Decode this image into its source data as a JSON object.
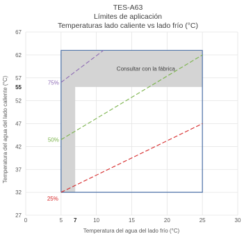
{
  "chart_data": {
    "type": "line",
    "title": "TES-A63",
    "subtitle_1": "Límites de aplicación",
    "subtitle_2": "Temperaturas lado caliente vs lado frío (°C)",
    "xlabel": "Temperatura del agua del lado frío (°C)",
    "ylabel": "Temperatura del agua del lado caliente (°C)",
    "xlim": [
      0,
      30
    ],
    "ylim": [
      27,
      67
    ],
    "x_ticks": [
      0,
      5,
      10,
      15,
      20,
      25,
      30
    ],
    "y_ticks": [
      27,
      32,
      37,
      42,
      47,
      52,
      57,
      62,
      67
    ],
    "x_extra_tick": {
      "value": 7,
      "label": "7"
    },
    "y_extra_tick": {
      "value": 55,
      "label": "55"
    },
    "grid": true,
    "annotation": "Consultar con la fábrica",
    "envelope": {
      "color": "#4a6fa5",
      "points": [
        [
          5,
          32
        ],
        [
          25,
          32
        ],
        [
          25,
          63
        ],
        [
          5,
          63
        ],
        [
          5,
          32
        ]
      ]
    },
    "consult_region": {
      "color": "#d4d4d4",
      "points": [
        [
          5,
          32
        ],
        [
          7,
          32
        ],
        [
          7,
          55
        ],
        [
          25,
          55
        ],
        [
          25,
          63
        ],
        [
          5,
          63
        ]
      ]
    },
    "series": [
      {
        "name": "25%",
        "color": "#d62728",
        "x": [
          5,
          25
        ],
        "y": [
          32,
          47
        ]
      },
      {
        "name": "50%",
        "color": "#7ab34a",
        "x": [
          5,
          25
        ],
        "y": [
          43.5,
          62
        ]
      },
      {
        "name": "75%",
        "color": "#8e6bb5",
        "x": [
          5,
          11
        ],
        "y": [
          56,
          63
        ]
      }
    ]
  },
  "colors": {
    "grid": "#e4e4e4",
    "axis": "#bfbfbf"
  }
}
